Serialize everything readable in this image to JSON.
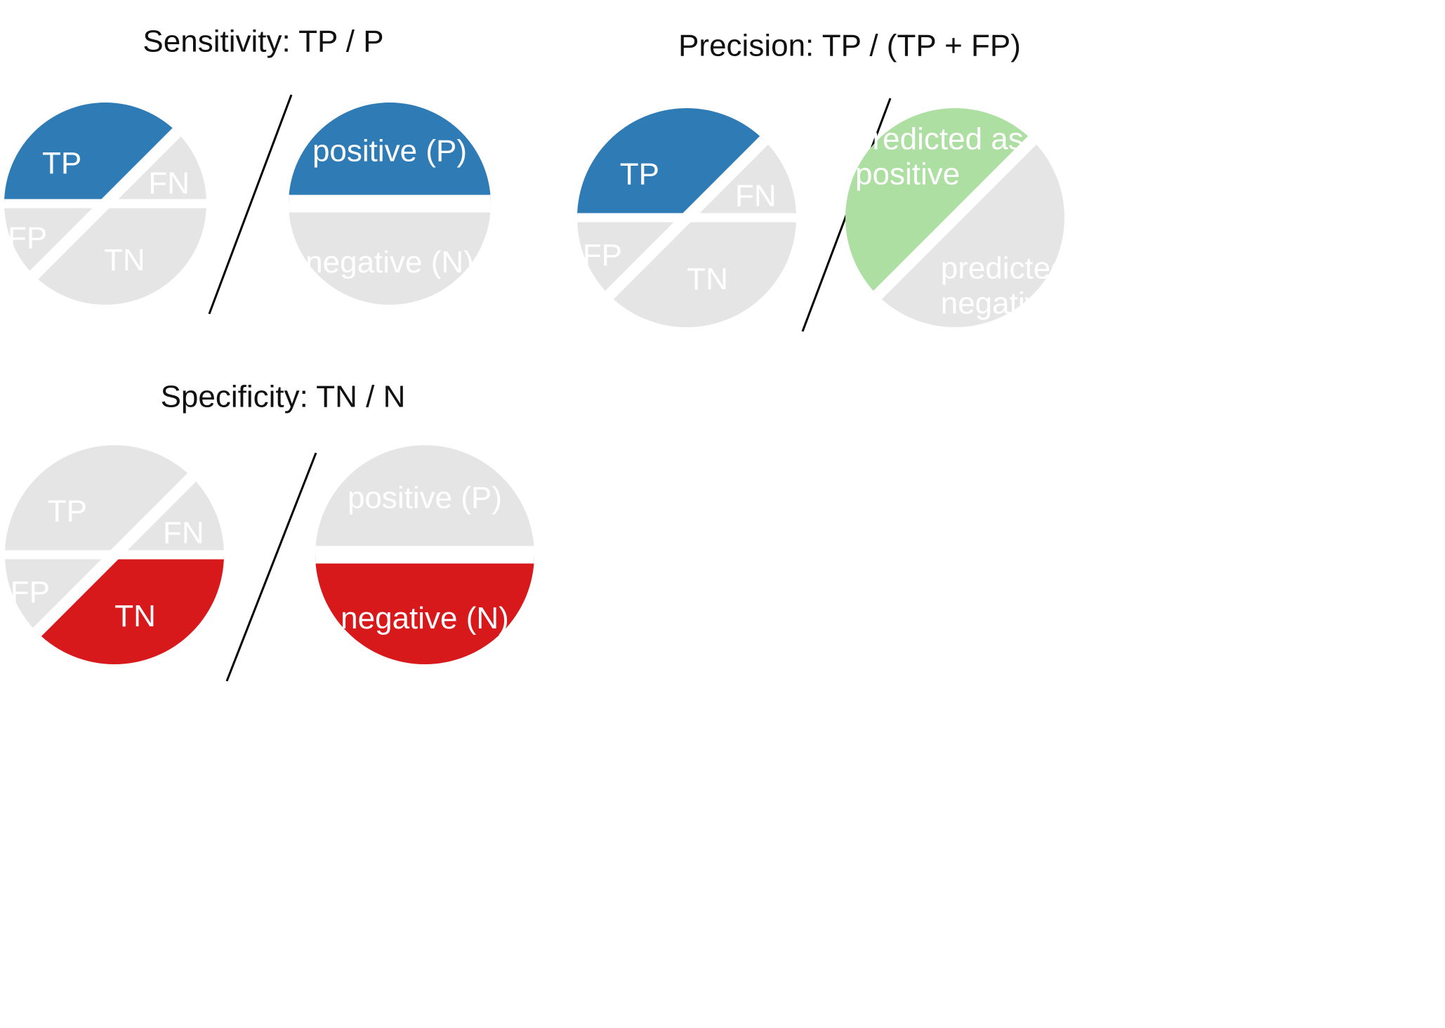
{
  "colors": {
    "gray": "#e5e5e5",
    "blue": "#2e7bb6",
    "red": "#d7191c",
    "green": "#addfa3",
    "white": "#ffffff",
    "divider": "#000000"
  },
  "panels": [
    {
      "id": "sensitivity",
      "title": "Sensitivity: TP / P",
      "numerator": {
        "type": "quadrant-circle",
        "highlight": "TP",
        "highlight_color": "blue",
        "labels": {
          "TP": "TP",
          "FN": "FN",
          "FP": "FP",
          "TN": "TN"
        }
      },
      "denominator": {
        "type": "horizontal-split-circle",
        "top_label": "positive (P)",
        "bottom_label": "negative (N)",
        "highlight": "top",
        "highlight_color": "blue"
      }
    },
    {
      "id": "precision",
      "title": "Precision: TP / (TP + FP)",
      "numerator": {
        "type": "quadrant-circle",
        "highlight": "TP",
        "highlight_color": "blue",
        "labels": {
          "TP": "TP",
          "FN": "FN",
          "FP": "FP",
          "TN": "TN"
        }
      },
      "denominator": {
        "type": "diagonal-split-circle",
        "top_label_lines": [
          "predicted as",
          "positive"
        ],
        "bottom_label_lines": [
          "predicted as",
          "negative"
        ],
        "highlight": "top",
        "highlight_color": "green"
      }
    },
    {
      "id": "specificity",
      "title": "Specificity: TN / N",
      "numerator": {
        "type": "quadrant-circle",
        "highlight": "TN",
        "highlight_color": "red",
        "labels": {
          "TP": "TP",
          "FN": "FN",
          "FP": "FP",
          "TN": "TN"
        }
      },
      "denominator": {
        "type": "horizontal-split-circle",
        "top_label": "positive (P)",
        "bottom_label": "negative (N)",
        "highlight": "bottom",
        "highlight_color": "red"
      }
    }
  ]
}
